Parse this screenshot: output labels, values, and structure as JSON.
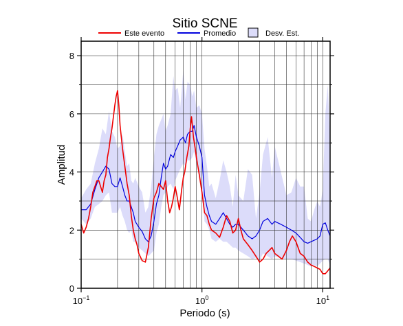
{
  "chart_data": {
    "type": "line",
    "title": "Sitio SCNE",
    "xlabel": "Periodo (s)",
    "ylabel": "Amplitud",
    "xscale": "log",
    "xlim": [
      0.1,
      11.5
    ],
    "ylim": [
      0,
      8.5
    ],
    "yticks": [
      0,
      2,
      4,
      6,
      8
    ],
    "xticks": [
      {
        "value": 0.1,
        "base": "10",
        "exp": "−1"
      },
      {
        "value": 1,
        "base": "10",
        "exp": "0"
      },
      {
        "value": 10,
        "base": "10",
        "exp": "1"
      }
    ],
    "grid": true,
    "legend_position": "top",
    "legend": [
      {
        "label": "Este evento",
        "kind": "line",
        "color": "#ee0000"
      },
      {
        "label": "Promedio",
        "kind": "line",
        "color": "#0000dd"
      },
      {
        "label": "Desv. Est.",
        "kind": "box",
        "color": "#dcdcfa"
      }
    ],
    "series": [
      {
        "name": "Este evento",
        "color": "#ee0000",
        "x": [
          0.1,
          0.105,
          0.11,
          0.115,
          0.12,
          0.125,
          0.13,
          0.135,
          0.14,
          0.145,
          0.15,
          0.155,
          0.16,
          0.165,
          0.17,
          0.175,
          0.18,
          0.185,
          0.19,
          0.195,
          0.2,
          0.205,
          0.21,
          0.22,
          0.23,
          0.24,
          0.25,
          0.26,
          0.27,
          0.28,
          0.29,
          0.3,
          0.32,
          0.34,
          0.36,
          0.38,
          0.4,
          0.42,
          0.44,
          0.46,
          0.48,
          0.5,
          0.52,
          0.54,
          0.56,
          0.58,
          0.6,
          0.62,
          0.65,
          0.68,
          0.7,
          0.72,
          0.75,
          0.78,
          0.8,
          0.82,
          0.85,
          0.88,
          0.9,
          0.95,
          1.0,
          1.05,
          1.1,
          1.15,
          1.2,
          1.3,
          1.4,
          1.5,
          1.6,
          1.7,
          1.8,
          1.9,
          2.0,
          2.1,
          2.2,
          2.4,
          2.6,
          2.8,
          3.0,
          3.2,
          3.4,
          3.6,
          3.8,
          4.0,
          4.3,
          4.6,
          5.0,
          5.3,
          5.6,
          6.0,
          6.5,
          7.0,
          7.5,
          8.0,
          8.5,
          9.0,
          9.5,
          10.0,
          10.5,
          11.0,
          11.5
        ],
        "values": [
          2.2,
          1.9,
          2.1,
          2.4,
          2.8,
          3.3,
          3.5,
          3.7,
          3.7,
          3.5,
          3.3,
          3.7,
          3.9,
          4.5,
          4.8,
          5.2,
          5.5,
          5.9,
          6.3,
          6.6,
          6.8,
          6.3,
          5.6,
          4.8,
          4.2,
          3.6,
          3.2,
          2.5,
          2.0,
          1.7,
          1.5,
          1.2,
          0.95,
          0.9,
          1.4,
          2.4,
          3.1,
          3.3,
          3.6,
          3.5,
          3.4,
          3.7,
          3.0,
          2.6,
          2.8,
          3.1,
          3.5,
          3.2,
          2.7,
          3.4,
          3.8,
          4.0,
          4.5,
          4.9,
          5.5,
          5.9,
          5.2,
          4.8,
          4.5,
          3.9,
          3.3,
          2.6,
          2.5,
          2.2,
          2.0,
          1.9,
          1.75,
          2.1,
          2.5,
          2.3,
          1.9,
          2.0,
          2.4,
          2.0,
          1.7,
          1.5,
          1.3,
          1.1,
          0.9,
          1.0,
          1.2,
          1.3,
          1.4,
          1.2,
          1.1,
          1.0,
          1.3,
          1.6,
          1.8,
          1.6,
          1.2,
          1.1,
          0.9,
          0.8,
          0.75,
          0.7,
          0.65,
          0.5,
          0.5,
          0.6,
          0.7
        ]
      },
      {
        "name": "Promedio",
        "color": "#0000dd",
        "x": [
          0.1,
          0.11,
          0.12,
          0.13,
          0.14,
          0.15,
          0.16,
          0.17,
          0.18,
          0.19,
          0.2,
          0.21,
          0.22,
          0.23,
          0.24,
          0.25,
          0.26,
          0.27,
          0.28,
          0.3,
          0.32,
          0.34,
          0.36,
          0.38,
          0.4,
          0.42,
          0.44,
          0.46,
          0.48,
          0.5,
          0.52,
          0.55,
          0.58,
          0.6,
          0.63,
          0.66,
          0.7,
          0.73,
          0.76,
          0.8,
          0.83,
          0.86,
          0.9,
          0.95,
          1.0,
          1.05,
          1.1,
          1.15,
          1.2,
          1.3,
          1.4,
          1.5,
          1.6,
          1.7,
          1.8,
          1.9,
          2.0,
          2.2,
          2.4,
          2.6,
          2.8,
          3.0,
          3.2,
          3.5,
          3.8,
          4.0,
          4.5,
          5.0,
          5.5,
          6.0,
          6.5,
          7.0,
          7.5,
          8.0,
          8.5,
          9.0,
          9.5,
          10.0,
          10.5,
          11.0,
          11.5
        ],
        "values": [
          2.7,
          2.7,
          2.9,
          3.4,
          3.8,
          4.0,
          4.2,
          4.1,
          3.6,
          3.5,
          3.5,
          3.8,
          3.5,
          3.2,
          3.0,
          3.0,
          2.8,
          2.6,
          2.3,
          2.1,
          1.95,
          1.7,
          1.6,
          1.8,
          2.3,
          2.9,
          3.2,
          3.8,
          4.3,
          4.1,
          4.2,
          4.6,
          4.5,
          4.7,
          4.9,
          5.1,
          5.2,
          5.0,
          5.3,
          5.4,
          5.4,
          5.6,
          5.2,
          4.9,
          4.5,
          3.2,
          2.8,
          2.5,
          2.3,
          2.2,
          2.4,
          2.6,
          2.4,
          2.2,
          2.1,
          2.2,
          2.2,
          2.0,
          1.8,
          1.7,
          1.8,
          2.0,
          2.3,
          2.4,
          2.2,
          2.3,
          2.2,
          2.1,
          2.0,
          1.9,
          1.75,
          1.6,
          1.55,
          1.6,
          1.65,
          1.7,
          1.8,
          2.2,
          2.25,
          2.0,
          1.8
        ]
      }
    ],
    "band": {
      "name": "Desv. Est.",
      "color": "#dcdcfa",
      "x": [
        0.1,
        0.11,
        0.12,
        0.13,
        0.14,
        0.15,
        0.16,
        0.17,
        0.18,
        0.19,
        0.2,
        0.21,
        0.22,
        0.23,
        0.24,
        0.25,
        0.26,
        0.27,
        0.28,
        0.3,
        0.32,
        0.34,
        0.36,
        0.38,
        0.4,
        0.42,
        0.44,
        0.46,
        0.48,
        0.5,
        0.52,
        0.55,
        0.58,
        0.6,
        0.63,
        0.66,
        0.7,
        0.73,
        0.76,
        0.8,
        0.83,
        0.86,
        0.9,
        0.95,
        1.0,
        1.05,
        1.1,
        1.15,
        1.2,
        1.3,
        1.4,
        1.5,
        1.6,
        1.7,
        1.8,
        1.9,
        2.0,
        2.2,
        2.4,
        2.6,
        2.8,
        3.0,
        3.2,
        3.5,
        3.8,
        4.0,
        4.5,
        5.0,
        5.5,
        6.0,
        6.5,
        7.0,
        7.5,
        8.0,
        8.5,
        9.0,
        9.5,
        10.0,
        10.5,
        11.0,
        11.5
      ],
      "upper": [
        3.1,
        3.4,
        3.6,
        4.3,
        4.8,
        5.5,
        5.3,
        6.1,
        5.4,
        5.2,
        4.8,
        4.9,
        5.3,
        4.7,
        4.2,
        4.3,
        3.7,
        3.6,
        3.8,
        3.5,
        3.3,
        2.6,
        2.8,
        3.5,
        4.5,
        5.3,
        5.6,
        5.8,
        6.0,
        5.4,
        5.6,
        6.0,
        7.3,
        6.8,
        6.9,
        6.2,
        7.5,
        6.5,
        7.1,
        7.0,
        6.6,
        6.8,
        6.2,
        6.3,
        6.0,
        4.8,
        4.2,
        3.5,
        3.6,
        3.1,
        3.7,
        4.4,
        4.0,
        3.5,
        2.8,
        3.9,
        3.2,
        3.0,
        4.1,
        3.9,
        2.4,
        3.3,
        4.6,
        5.2,
        3.8,
        4.9,
        4.0,
        3.2,
        3.3,
        3.8,
        3.5,
        3.5,
        2.4,
        2.3,
        2.7,
        3.0,
        2.8,
        3.4,
        6.0,
        7.0,
        5.2
      ],
      "lower": [
        2.4,
        2.2,
        2.4,
        2.8,
        2.9,
        3.0,
        3.2,
        3.3,
        2.6,
        2.6,
        2.6,
        2.8,
        2.5,
        2.3,
        2.0,
        1.9,
        2.0,
        1.6,
        1.6,
        1.4,
        1.3,
        1.2,
        1.1,
        1.2,
        1.3,
        1.9,
        2.2,
        2.8,
        3.2,
        3.3,
        3.5,
        3.6,
        3.4,
        3.7,
        3.9,
        4.1,
        4.3,
        4.2,
        4.4,
        4.4,
        4.5,
        4.7,
        4.3,
        3.9,
        3.5,
        2.3,
        2.2,
        2.0,
        1.7,
        1.6,
        1.7,
        1.6,
        1.6,
        1.5,
        1.4,
        1.4,
        1.3,
        1.2,
        1.1,
        1.0,
        1.05,
        0.95,
        1.2,
        1.1,
        1.0,
        1.1,
        1.05,
        1.0,
        1.0,
        0.95,
        0.9,
        0.85,
        0.8,
        0.75,
        0.8,
        0.75,
        0.85,
        0.95,
        1.0,
        1.0,
        0.8
      ]
    }
  }
}
